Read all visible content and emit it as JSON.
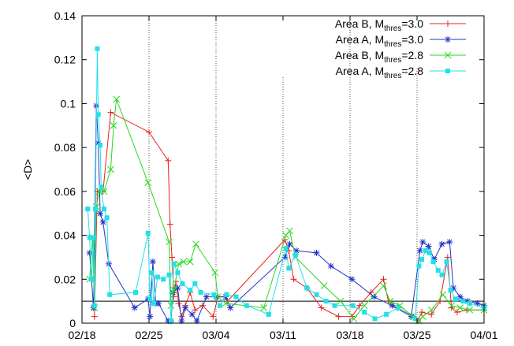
{
  "chart_data": {
    "type": "line",
    "title": "",
    "xlabel": "",
    "ylabel": "<D>",
    "x_axis": {
      "ticks": [
        {
          "day": 0,
          "label": "02/18"
        },
        {
          "day": 7,
          "label": "02/25"
        },
        {
          "day": 14,
          "label": "03/04"
        },
        {
          "day": 21,
          "label": "03/11"
        },
        {
          "day": 28,
          "label": "03/18"
        },
        {
          "day": 35,
          "label": "03/25"
        },
        {
          "day": 42,
          "label": "04/01"
        }
      ],
      "xlim": [
        0,
        42
      ]
    },
    "y_axis": {
      "ticks": [
        {
          "value": 0,
          "label": "0"
        },
        {
          "value": 0.02,
          "label": "0.02"
        },
        {
          "value": 0.04,
          "label": "0.04"
        },
        {
          "value": 0.06,
          "label": "0.06"
        },
        {
          "value": 0.08,
          "label": "0.08"
        },
        {
          "value": 0.1,
          "label": "0.1"
        },
        {
          "value": 0.12,
          "label": "0.12"
        },
        {
          "value": 0.14,
          "label": "0.14"
        }
      ],
      "ylim": [
        0,
        0.14
      ]
    },
    "vertical_dotted_lines_day": [
      7,
      14,
      21,
      28,
      35
    ],
    "threshold_line_y": 0.01,
    "legend_position": "top-right",
    "series": [
      {
        "name_main": "Area B, M",
        "name_sub": "thres",
        "name_tail": "=3.0",
        "color": "#e8201b",
        "marker": "plus",
        "points": [
          [
            1.3,
            0.003
          ],
          [
            1.6,
            0.06
          ],
          [
            2.2,
            0.06
          ],
          [
            3.0,
            0.096
          ],
          [
            7.0,
            0.087
          ],
          [
            9.0,
            0.074
          ],
          [
            9.2,
            0.045
          ],
          [
            9.4,
            0.03
          ],
          [
            9.6,
            0.012
          ],
          [
            9.8,
            0.019
          ],
          [
            10.1,
            0.009
          ],
          [
            10.4,
            0.003
          ],
          [
            10.8,
            0.008
          ],
          [
            11.3,
            0.014
          ],
          [
            11.8,
            0.006
          ],
          [
            12.6,
            0.008
          ],
          [
            13.7,
            0.003
          ],
          [
            14.2,
            0.012
          ],
          [
            14.9,
            0.012
          ],
          [
            15.2,
            0.01
          ],
          [
            21.2,
            0.038
          ],
          [
            21.6,
            0.033
          ],
          [
            22.1,
            0.02
          ],
          [
            23.5,
            0.016
          ],
          [
            25.0,
            0.007
          ],
          [
            26.8,
            0.003
          ],
          [
            28.2,
            0.003
          ],
          [
            29.0,
            0.008
          ],
          [
            30.2,
            0.014
          ],
          [
            31.5,
            0.02
          ],
          [
            32.0,
            0.01
          ],
          [
            33.0,
            0.007
          ],
          [
            34.6,
            0.003
          ],
          [
            35.1,
            0.001
          ],
          [
            35.5,
            0.005
          ],
          [
            36.5,
            0.004
          ],
          [
            37.4,
            0.01
          ],
          [
            38.2,
            0.03
          ],
          [
            38.6,
            0.007
          ],
          [
            39.2,
            0.005
          ],
          [
            40.2,
            0.006
          ],
          [
            42.0,
            0.006
          ]
        ]
      },
      {
        "name_main": "Area A, M",
        "name_sub": "thres",
        "name_tail": "=3.0",
        "color": "#2034c8",
        "marker": "star",
        "points": [
          [
            0.8,
            0.032
          ],
          [
            1.2,
            0.007
          ],
          [
            1.5,
            0.099
          ],
          [
            1.7,
            0.082
          ],
          [
            1.9,
            0.05
          ],
          [
            2.2,
            0.046
          ],
          [
            2.8,
            0.027
          ],
          [
            5.5,
            0.007
          ],
          [
            6.9,
            0.011
          ],
          [
            7.1,
            0.003
          ],
          [
            7.4,
            0.028
          ],
          [
            7.7,
            0.009
          ],
          [
            8.0,
            0.009
          ],
          [
            9.0,
            0.001
          ],
          [
            9.3,
            0.001
          ],
          [
            9.5,
            0.014
          ],
          [
            10.0,
            0.016
          ],
          [
            10.4,
            0.001
          ],
          [
            10.8,
            0.007
          ],
          [
            11.5,
            0.004
          ],
          [
            12.0,
            0.001
          ],
          [
            13.0,
            0.012
          ],
          [
            14.0,
            0.012
          ],
          [
            15.0,
            0.012
          ],
          [
            15.5,
            0.007
          ],
          [
            21.2,
            0.03
          ],
          [
            21.7,
            0.036
          ],
          [
            22.4,
            0.033
          ],
          [
            24.5,
            0.032
          ],
          [
            26.0,
            0.026
          ],
          [
            28.2,
            0.02
          ],
          [
            30.5,
            0.012
          ],
          [
            32.4,
            0.008
          ],
          [
            34.4,
            0.003
          ],
          [
            35.3,
            0.033
          ],
          [
            35.6,
            0.037
          ],
          [
            36.2,
            0.035
          ],
          [
            36.8,
            0.029
          ],
          [
            37.6,
            0.036
          ],
          [
            38.4,
            0.037
          ],
          [
            38.8,
            0.016
          ],
          [
            39.5,
            0.012
          ],
          [
            40.3,
            0.01
          ],
          [
            41.3,
            0.009
          ],
          [
            42.0,
            0.008
          ]
        ]
      },
      {
        "name_main": "Area B, M",
        "name_sub": "thres",
        "name_tail": "=2.8",
        "color": "#27d91e",
        "marker": "cross",
        "points": [
          [
            0.8,
            0.02
          ],
          [
            1.1,
            0.039
          ],
          [
            1.3,
            0.007
          ],
          [
            1.5,
            0.053
          ],
          [
            1.8,
            0.06
          ],
          [
            2.3,
            0.06
          ],
          [
            3.0,
            0.07
          ],
          [
            3.3,
            0.09
          ],
          [
            3.6,
            0.102
          ],
          [
            6.9,
            0.064
          ],
          [
            9.1,
            0.037
          ],
          [
            9.3,
            0.008
          ],
          [
            9.6,
            0.015
          ],
          [
            10.1,
            0.027
          ],
          [
            10.6,
            0.028
          ],
          [
            11.3,
            0.028
          ],
          [
            11.9,
            0.036
          ],
          [
            13.9,
            0.023
          ],
          [
            14.2,
            0.012
          ],
          [
            15.0,
            0.009
          ],
          [
            19.0,
            0.007
          ],
          [
            21.3,
            0.04
          ],
          [
            21.7,
            0.042
          ],
          [
            22.3,
            0.03
          ],
          [
            25.3,
            0.017
          ],
          [
            27.0,
            0.01
          ],
          [
            28.4,
            0.002
          ],
          [
            29.5,
            0.008
          ],
          [
            31.5,
            0.017
          ],
          [
            32.2,
            0.01
          ],
          [
            33.2,
            0.008
          ],
          [
            34.6,
            0.003
          ],
          [
            35.2,
            0.001
          ],
          [
            35.6,
            0.003
          ],
          [
            36.5,
            0.006
          ],
          [
            37.7,
            0.013
          ],
          [
            38.6,
            0.008
          ],
          [
            39.5,
            0.007
          ],
          [
            40.5,
            0.006
          ],
          [
            42.0,
            0.006
          ]
        ]
      },
      {
        "name_main": "Area A, M",
        "name_sub": "thres",
        "name_tail": "=2.8",
        "color": "#22e0e6",
        "marker": "square",
        "points": [
          [
            0.6,
            0.052
          ],
          [
            0.8,
            0.039
          ],
          [
            1.0,
            0.02
          ],
          [
            1.2,
            0.039
          ],
          [
            1.3,
            0.008
          ],
          [
            1.4,
            0.052
          ],
          [
            1.6,
            0.125
          ],
          [
            1.7,
            0.095
          ],
          [
            1.9,
            0.081
          ],
          [
            2.0,
            0.062
          ],
          [
            2.3,
            0.052
          ],
          [
            2.6,
            0.048
          ],
          [
            2.9,
            0.013
          ],
          [
            5.6,
            0.014
          ],
          [
            6.9,
            0.041
          ],
          [
            7.1,
            0.011
          ],
          [
            7.3,
            0.023
          ],
          [
            7.5,
            0.009
          ],
          [
            7.9,
            0.021
          ],
          [
            8.5,
            0.02
          ],
          [
            9.1,
            0.022
          ],
          [
            9.3,
            0.001
          ],
          [
            9.6,
            0.027
          ],
          [
            10.0,
            0.023
          ],
          [
            10.5,
            0.018
          ],
          [
            11.3,
            0.015
          ],
          [
            11.8,
            0.018
          ],
          [
            12.4,
            0.014
          ],
          [
            13.8,
            0.013
          ],
          [
            14.4,
            0.008
          ],
          [
            15.1,
            0.013
          ],
          [
            16.1,
            0.012
          ],
          [
            17.2,
            0.008
          ],
          [
            19.5,
            0.004
          ],
          [
            21.3,
            0.034
          ],
          [
            21.6,
            0.025
          ],
          [
            22.3,
            0.031
          ],
          [
            23.5,
            0.016
          ],
          [
            24.5,
            0.013
          ],
          [
            25.5,
            0.01
          ],
          [
            26.4,
            0.008
          ],
          [
            28.3,
            0.008
          ],
          [
            29.5,
            0.005
          ],
          [
            30.6,
            0.002
          ],
          [
            31.8,
            0.004
          ],
          [
            33.0,
            0.007
          ],
          [
            34.8,
            0.002
          ],
          [
            35.2,
            0.026
          ],
          [
            35.5,
            0.029
          ],
          [
            35.9,
            0.033
          ],
          [
            36.3,
            0.032
          ],
          [
            36.7,
            0.028
          ],
          [
            37.2,
            0.024
          ],
          [
            37.6,
            0.022
          ],
          [
            38.1,
            0.028
          ],
          [
            38.5,
            0.015
          ],
          [
            39.0,
            0.011
          ],
          [
            39.8,
            0.01
          ],
          [
            40.5,
            0.009
          ],
          [
            42.0,
            0.007
          ]
        ]
      }
    ]
  }
}
